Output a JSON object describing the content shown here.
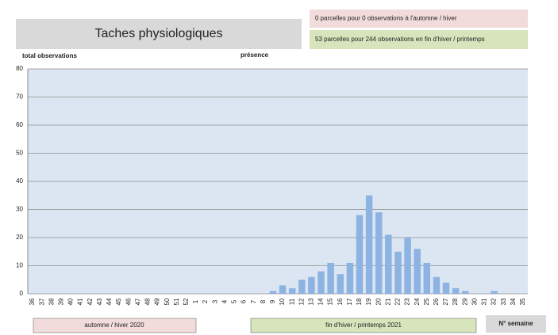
{
  "chart_data": {
    "type": "bar",
    "title": "Taches physiologiques",
    "ylabel": "total observations",
    "xlabel": "N° semaine",
    "annotations": [
      "0 parcelles pour 0 observations à l'automne / hiver",
      "53 parcelles pour 244 observations en fin d'hiver / printemps"
    ],
    "periods": [
      "automne / hiver 2020",
      "fin d'hiver / printemps 2021"
    ],
    "categories": [
      "36",
      "37",
      "38",
      "39",
      "40",
      "41",
      "42",
      "43",
      "44",
      "45",
      "46",
      "47",
      "48",
      "49",
      "50",
      "51",
      "52",
      "1",
      "2",
      "3",
      "4",
      "5",
      "6",
      "7",
      "8",
      "9",
      "10",
      "11",
      "12",
      "13",
      "14",
      "15",
      "16",
      "17",
      "18",
      "19",
      "20",
      "21",
      "22",
      "23",
      "24",
      "25",
      "26",
      "27",
      "28",
      "29",
      "30",
      "31",
      "32",
      "33",
      "34",
      "35"
    ],
    "series": [
      {
        "name": "présence",
        "color": "#8db3e2",
        "values": [
          0,
          0,
          0,
          0,
          0,
          0,
          0,
          0,
          0,
          0,
          0,
          0,
          0,
          0,
          0,
          0,
          0,
          0,
          0,
          0,
          0,
          0,
          0,
          0,
          0,
          1,
          3,
          2,
          5,
          6,
          8,
          11,
          7,
          11,
          28,
          35,
          29,
          21,
          15,
          20,
          16,
          11,
          6,
          4,
          2,
          1,
          0,
          0,
          1,
          0,
          0,
          0
        ]
      }
    ],
    "ylim": [
      0,
      80
    ],
    "yticks": [
      0,
      10,
      20,
      30,
      40,
      50,
      60,
      70,
      80
    ],
    "grid": true
  }
}
